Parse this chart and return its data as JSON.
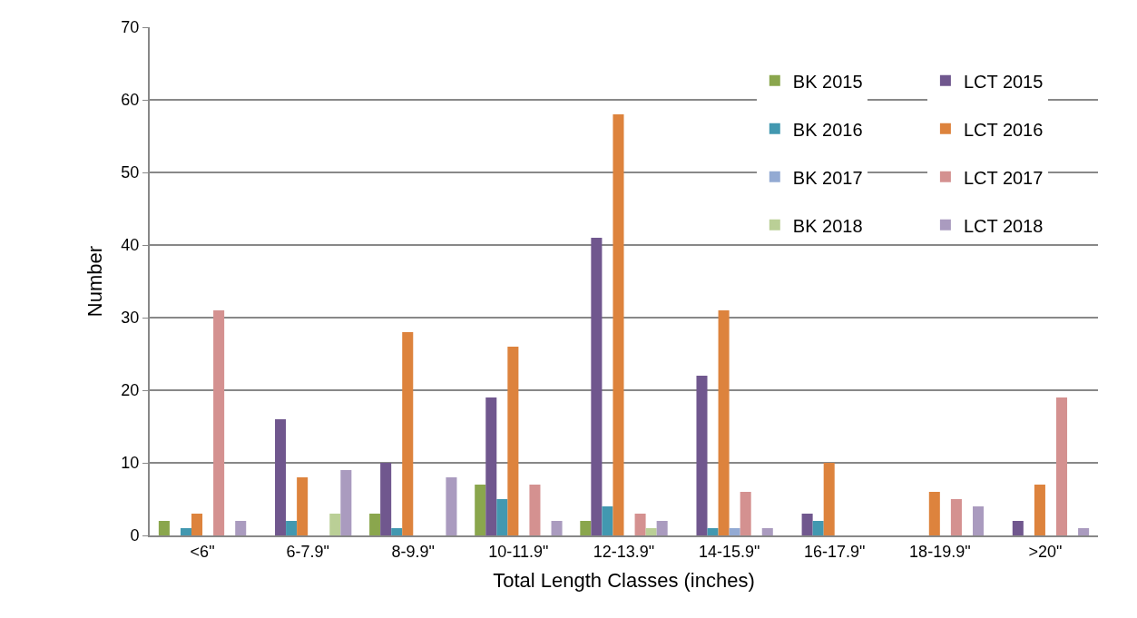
{
  "chart_data": {
    "type": "bar",
    "xlabel": "Total Length Classes (inches)",
    "ylabel": "Number",
    "categories": [
      "<6\"",
      "6-7.9\"",
      "8-9.9\"",
      "10-11.9\"",
      "12-13.9\"",
      "14-15.9\"",
      "16-17.9\"",
      "18-19.9\"",
      ">20\""
    ],
    "series": [
      {
        "name": "BK 2015",
        "color": "#8aa64d",
        "values": [
          2,
          0,
          3,
          7,
          2,
          0,
          0,
          0,
          0
        ]
      },
      {
        "name": "LCT 2015",
        "color": "#70578e",
        "values": [
          0,
          16,
          10,
          19,
          41,
          22,
          3,
          0,
          2
        ]
      },
      {
        "name": "BK 2016",
        "color": "#4298b0",
        "values": [
          1,
          2,
          1,
          5,
          4,
          1,
          2,
          0,
          0
        ]
      },
      {
        "name": "LCT 2016",
        "color": "#dd833d",
        "values": [
          3,
          8,
          28,
          26,
          58,
          31,
          10,
          6,
          7
        ]
      },
      {
        "name": "BK 2017",
        "color": "#93aad3",
        "values": [
          0,
          0,
          0,
          0,
          0,
          1,
          0,
          0,
          0
        ]
      },
      {
        "name": "LCT 2017",
        "color": "#d49190",
        "values": [
          31,
          0,
          0,
          7,
          3,
          6,
          0,
          5,
          19
        ]
      },
      {
        "name": "BK 2018",
        "color": "#bacf96",
        "values": [
          0,
          3,
          0,
          0,
          1,
          0,
          0,
          0,
          0
        ]
      },
      {
        "name": "LCT 2018",
        "color": "#aa9bbf",
        "values": [
          2,
          9,
          8,
          2,
          2,
          1,
          0,
          4,
          1
        ]
      }
    ],
    "ylim": [
      0,
      70
    ],
    "yticks": [
      0,
      10,
      20,
      30,
      40,
      50,
      60,
      70
    ],
    "grid": "y",
    "legend": "top right"
  }
}
